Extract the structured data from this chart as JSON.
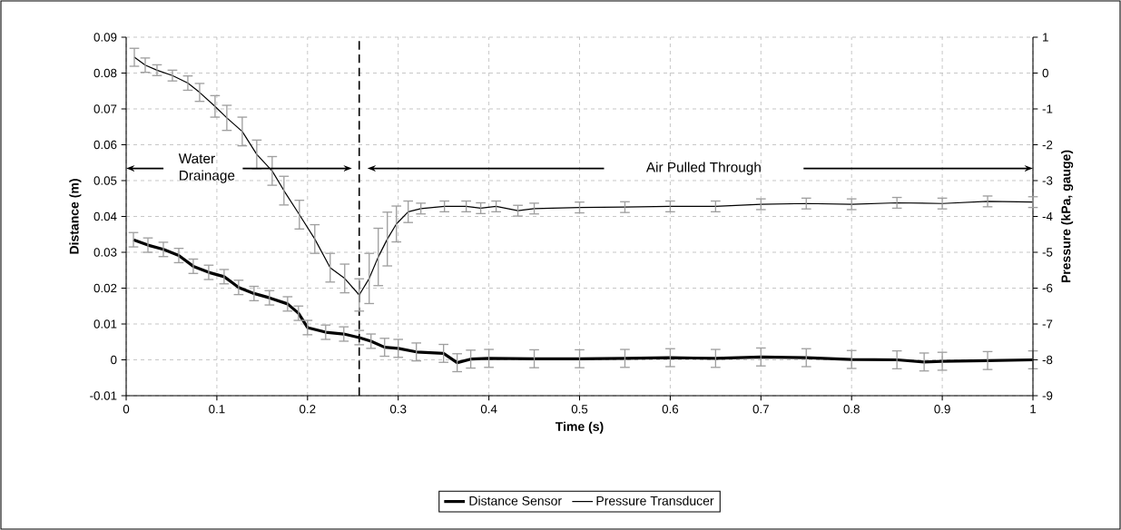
{
  "chart_data": {
    "type": "line",
    "xlabel": "Time (s)",
    "ylabel": "Distance (m)",
    "y2label": "Pressure (kPa, gauge)",
    "xlim": [
      0,
      1
    ],
    "xticks": [
      0,
      0.1,
      0.2,
      0.3,
      0.4,
      0.5,
      0.6,
      0.7,
      0.8,
      0.9,
      1
    ],
    "ylim": [
      -0.01,
      0.09
    ],
    "yticks": [
      -0.01,
      0,
      0.01,
      0.02,
      0.03,
      0.04,
      0.05,
      0.06,
      0.07,
      0.08,
      0.09
    ],
    "y2lim": [
      -9,
      1
    ],
    "y2ticks": [
      -9,
      -8,
      -7,
      -6,
      -5,
      -4,
      -3,
      -2,
      -1,
      0,
      1
    ],
    "grid": true,
    "legend": "bottom",
    "marker": "none",
    "line_style": "solid",
    "ref_lines": [
      {
        "axis": "x",
        "value": 0.257,
        "line_style": "dashed"
      }
    ],
    "annotations": [
      "Water Drainage",
      "Air Pulled Through"
    ],
    "series": [
      {
        "name": "Distance Sensor",
        "color": "#000000",
        "axis": "y",
        "x": [
          0.008,
          0.024,
          0.041,
          0.058,
          0.074,
          0.091,
          0.108,
          0.124,
          0.141,
          0.158,
          0.178,
          0.19,
          0.2,
          0.22,
          0.24,
          0.257,
          0.27,
          0.285,
          0.3,
          0.32,
          0.35,
          0.365,
          0.38,
          0.4,
          0.45,
          0.5,
          0.55,
          0.6,
          0.65,
          0.7,
          0.75,
          0.8,
          0.85,
          0.88,
          0.9,
          0.95,
          1.0
        ],
        "values": [
          0.0335,
          0.032,
          0.0308,
          0.0291,
          0.0261,
          0.0244,
          0.0232,
          0.0202,
          0.0185,
          0.0173,
          0.0156,
          0.013,
          0.009,
          0.0077,
          0.0072,
          0.0062,
          0.0052,
          0.0035,
          0.0032,
          0.0022,
          0.0018,
          -0.0008,
          0.0002,
          0.0004,
          0.0003,
          0.0003,
          0.0004,
          0.0006,
          0.0004,
          0.0008,
          0.0006,
          0.0001,
          0.0,
          -0.0006,
          -0.0004,
          -0.0002,
          0.0
        ],
        "errors": [
          0.002,
          0.002,
          0.002,
          0.002,
          0.002,
          0.002,
          0.002,
          0.002,
          0.002,
          0.002,
          0.002,
          0.002,
          0.002,
          0.002,
          0.002,
          0.002,
          0.002,
          0.0025,
          0.0025,
          0.0025,
          0.0025,
          0.0025,
          0.0025,
          0.0025,
          0.0025,
          0.0025,
          0.0025,
          0.0025,
          0.0025,
          0.0025,
          0.0025,
          0.0025,
          0.0025,
          0.0025,
          0.0025,
          0.0025,
          0.0025
        ]
      },
      {
        "name": "Pressure Transducer",
        "color": "#000000",
        "axis": "y2",
        "x": [
          0.009,
          0.021,
          0.034,
          0.051,
          0.068,
          0.081,
          0.098,
          0.111,
          0.128,
          0.144,
          0.161,
          0.174,
          0.191,
          0.208,
          0.225,
          0.241,
          0.257,
          0.268,
          0.278,
          0.288,
          0.298,
          0.311,
          0.325,
          0.351,
          0.375,
          0.391,
          0.408,
          0.432,
          0.45,
          0.5,
          0.55,
          0.6,
          0.65,
          0.7,
          0.75,
          0.8,
          0.85,
          0.9,
          0.95,
          1.0
        ],
        "values": [
          0.44,
          0.22,
          0.08,
          -0.07,
          -0.28,
          -0.54,
          -0.93,
          -1.25,
          -1.63,
          -2.27,
          -2.73,
          -3.28,
          -3.95,
          -4.63,
          -5.43,
          -5.73,
          -6.19,
          -5.73,
          -5.13,
          -4.63,
          -4.21,
          -3.87,
          -3.78,
          -3.72,
          -3.72,
          -3.77,
          -3.72,
          -3.84,
          -3.78,
          -3.75,
          -3.74,
          -3.72,
          -3.72,
          -3.66,
          -3.64,
          -3.66,
          -3.62,
          -3.64,
          -3.58,
          -3.6
        ],
        "errors": [
          0.25,
          0.2,
          0.15,
          0.15,
          0.2,
          0.25,
          0.3,
          0.35,
          0.4,
          0.4,
          0.4,
          0.4,
          0.4,
          0.4,
          0.4,
          0.4,
          0.45,
          0.7,
          0.8,
          0.75,
          0.5,
          0.3,
          0.15,
          0.15,
          0.15,
          0.15,
          0.15,
          0.15,
          0.15,
          0.15,
          0.15,
          0.15,
          0.15,
          0.15,
          0.15,
          0.15,
          0.15,
          0.15,
          0.15,
          0.15
        ]
      }
    ]
  }
}
